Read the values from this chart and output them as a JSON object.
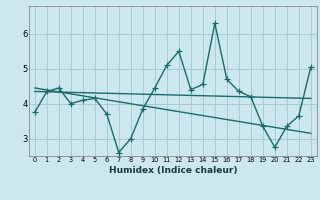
{
  "title": "",
  "xlabel": "Humidex (Indice chaleur)",
  "bg_color": "#cce8ee",
  "grid_color": "#aacccc",
  "line_color": "#1a6b6b",
  "xlim": [
    -0.5,
    23.5
  ],
  "ylim": [
    2.5,
    6.8
  ],
  "yticks": [
    3,
    4,
    5,
    6
  ],
  "xticks": [
    0,
    1,
    2,
    3,
    4,
    5,
    6,
    7,
    8,
    9,
    10,
    11,
    12,
    13,
    14,
    15,
    16,
    17,
    18,
    19,
    20,
    21,
    22,
    23
  ],
  "data_x": [
    0,
    1,
    2,
    3,
    4,
    5,
    6,
    7,
    8,
    9,
    10,
    11,
    12,
    13,
    14,
    15,
    16,
    17,
    18,
    19,
    20,
    21,
    22,
    23
  ],
  "data_y": [
    3.75,
    4.35,
    4.45,
    4.0,
    4.1,
    4.15,
    3.7,
    2.6,
    3.0,
    3.85,
    4.45,
    5.1,
    5.5,
    4.4,
    4.55,
    6.3,
    4.7,
    4.35,
    4.2,
    3.35,
    2.75,
    3.35,
    3.65,
    5.05
  ],
  "trend1_x": [
    0,
    23
  ],
  "trend1_y": [
    4.35,
    4.15
  ],
  "trend2_x": [
    0,
    23
  ],
  "trend2_y": [
    4.45,
    3.15
  ],
  "marker_size": 4.0,
  "linewidth": 1.0
}
